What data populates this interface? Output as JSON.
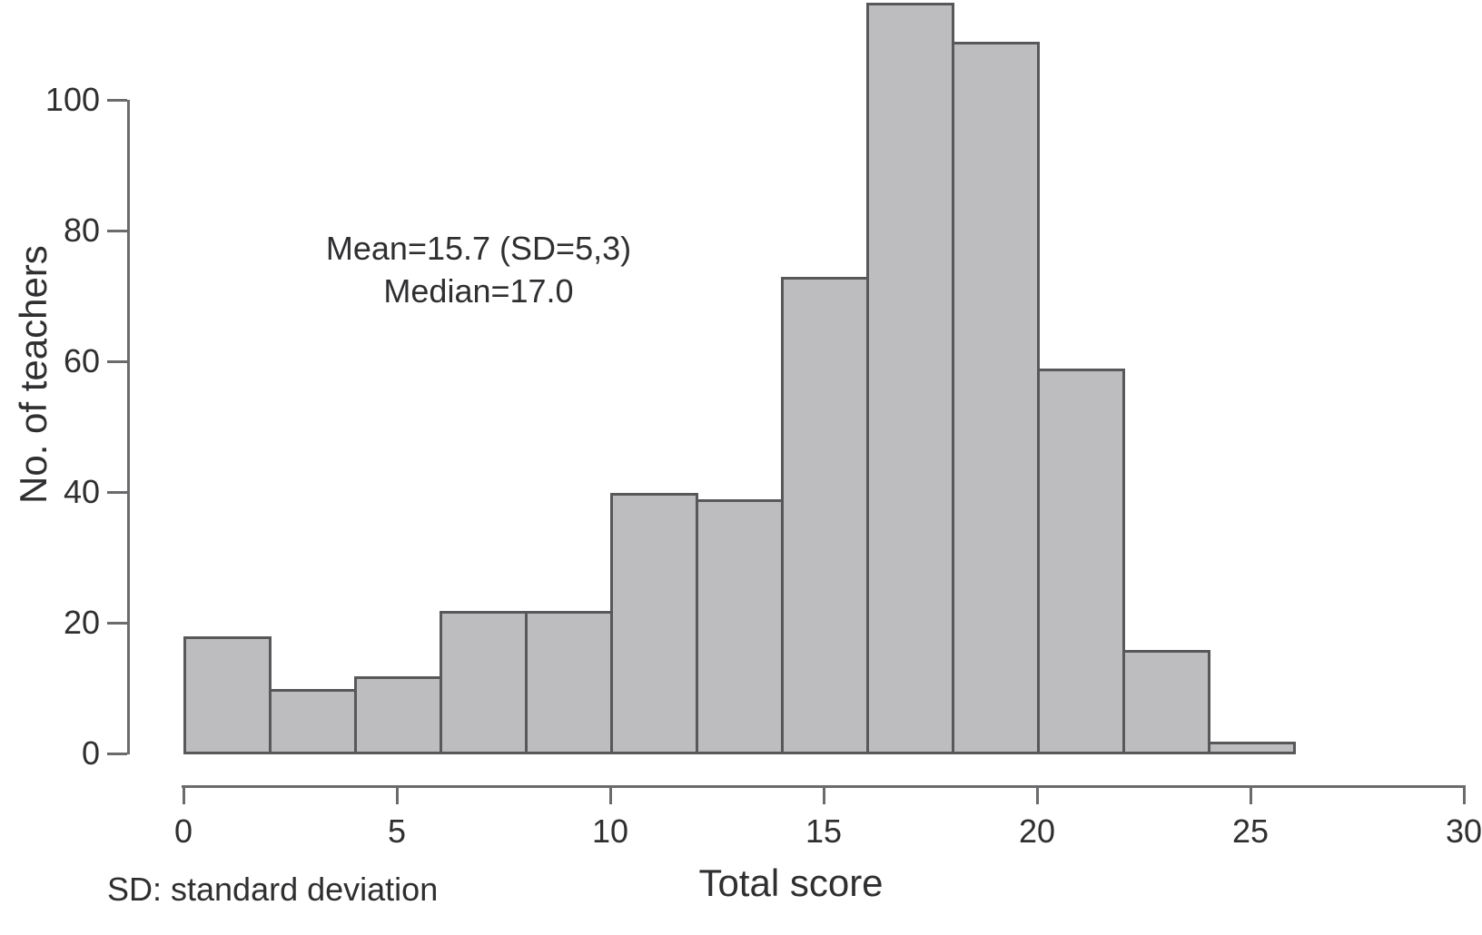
{
  "figure": {
    "footnote": "SD: standard deviation"
  },
  "chart_data": {
    "type": "bar",
    "subtype": "histogram",
    "title": "",
    "xlabel": "Total score",
    "ylabel": "No. of teachers",
    "bin_start": 0,
    "bin_width": 2,
    "bin_edges": [
      0,
      2,
      4,
      6,
      8,
      10,
      12,
      14,
      16,
      18,
      20,
      22,
      24,
      26
    ],
    "values": [
      18,
      10,
      12,
      22,
      22,
      40,
      39,
      73,
      115,
      109,
      59,
      16,
      2
    ],
    "xticks": [
      0,
      5,
      10,
      15,
      20,
      25,
      30
    ],
    "yticks": [
      0,
      20,
      40,
      60,
      80,
      100
    ],
    "xlim": [
      0,
      30
    ],
    "ylim": [
      0,
      100
    ],
    "grid": false,
    "legend": "none",
    "annotations": [
      "Mean=15.7 (SD=5,3)",
      "Median=17.0"
    ],
    "stats": {
      "mean": 15.7,
      "sd": "5,3",
      "median": 17.0
    },
    "colors": {
      "bar_fill": "#bdbdbf",
      "bar_stroke": "#58585a",
      "axis": "#6b6b6d",
      "text": "#2f2f31",
      "background": "#ffffff"
    }
  }
}
